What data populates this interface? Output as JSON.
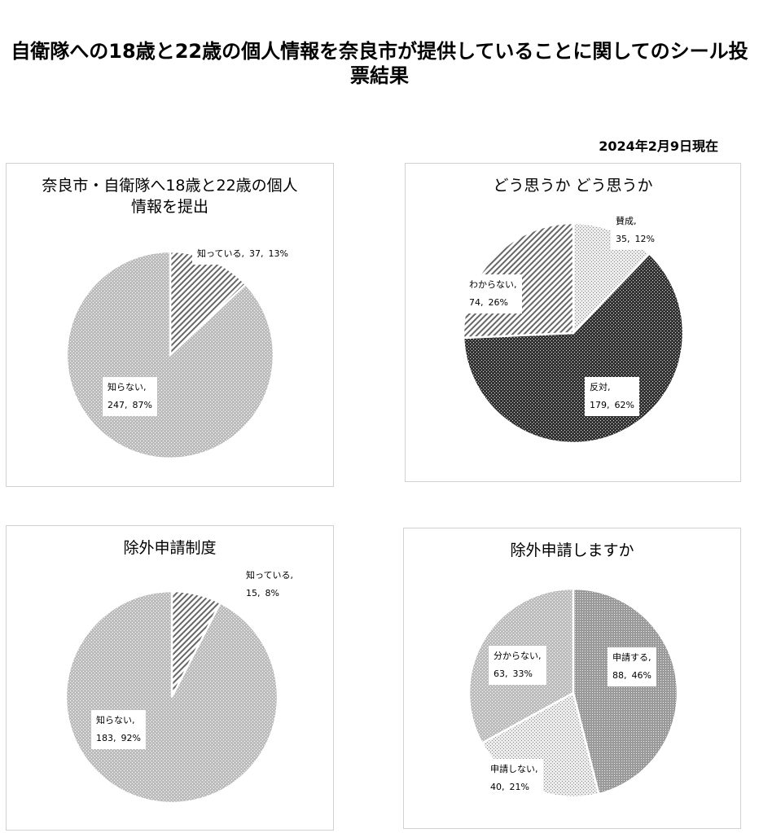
{
  "title": "自衛隊への18歳と22歳の個人情報を奈良市が提供していることに関してのシール投票結果",
  "date": "2024年2月9日現在",
  "chart_data": [
    {
      "type": "pie",
      "title": "奈良市・自衛隊へ18歳と22歳の個人情報を提出",
      "categories": [
        "知っている,",
        "知らない,"
      ],
      "values": [
        37,
        247
      ],
      "value_labels": [
        "37,",
        "247,"
      ],
      "percent_labels": [
        "13%",
        "87%"
      ]
    },
    {
      "type": "pie",
      "title": "どう思うか どう思うか",
      "categories": [
        "賛成,",
        "反対,",
        "わからない,"
      ],
      "values": [
        35,
        179,
        74
      ],
      "value_labels": [
        "35,",
        "179,",
        "74,"
      ],
      "percent_labels": [
        "12%",
        "62%",
        "26%"
      ]
    },
    {
      "type": "pie",
      "title": "除外申請制度",
      "categories": [
        "知っている,",
        "知らない,"
      ],
      "values": [
        15,
        183
      ],
      "value_labels": [
        "15,",
        "183,"
      ],
      "percent_labels": [
        "8%",
        "92%"
      ]
    },
    {
      "type": "pie",
      "title": "除外申請しますか",
      "categories": [
        "申請する,",
        "申請しない,",
        "分からない,"
      ],
      "values": [
        88,
        40,
        63
      ],
      "value_labels": [
        "88,",
        "40,",
        "63,"
      ],
      "percent_labels": [
        "46%",
        "21%",
        "33%"
      ]
    }
  ]
}
